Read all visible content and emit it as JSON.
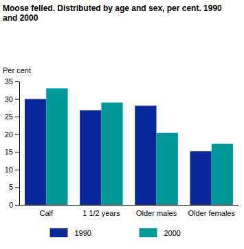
{
  "chart_data": {
    "type": "bar",
    "title": "Moose felled. Distributed by age and sex, per cent. 1990 and 2000",
    "y_label": "Per cent",
    "categories": [
      "Calf",
      "1 1/2 years",
      "Older males",
      "Older females"
    ],
    "series": [
      {
        "name": "1990",
        "color": "#0b2a9a",
        "values": [
          30,
          26.8,
          28.1,
          15.2
        ]
      },
      {
        "name": "2000",
        "color": "#00999a",
        "values": [
          33,
          29,
          20.4,
          17.3
        ]
      }
    ],
    "ylim": [
      0,
      35
    ],
    "yticks": [
      0,
      5,
      10,
      15,
      20,
      25,
      30,
      35
    ],
    "grid": false,
    "legend": "bottom"
  }
}
